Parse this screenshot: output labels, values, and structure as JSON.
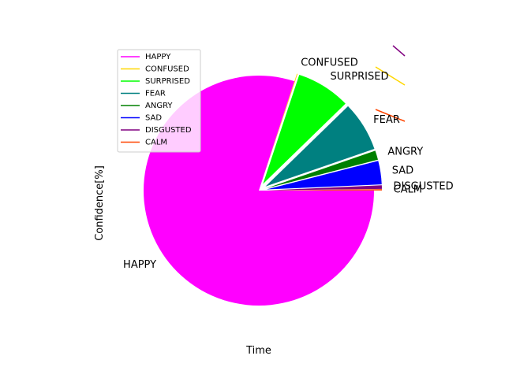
{
  "chart_data": {
    "type": "pie",
    "xlabel": "Time",
    "ylabel": "Confidence[%]",
    "slices": [
      {
        "label": "HAPPY",
        "value": 80.0,
        "color": "#ff00ff"
      },
      {
        "label": "CONFUSED",
        "value": 0.1,
        "color": "#ffd700"
      },
      {
        "label": "SURPRISED",
        "value": 7.6,
        "color": "#00ff00"
      },
      {
        "label": "FEAR",
        "value": 7.0,
        "color": "#008080"
      },
      {
        "label": "ANGRY",
        "value": 1.3,
        "color": "#008000"
      },
      {
        "label": "SAD",
        "value": 3.3,
        "color": "#0000ff"
      },
      {
        "label": "DISGUSTED",
        "value": 0.5,
        "color": "#800080"
      },
      {
        "label": "CALM",
        "value": 0.2,
        "color": "#ff4500"
      }
    ],
    "legend": {
      "placement": "upper-left",
      "entries": [
        "HAPPY",
        "CONFUSED",
        "SURPRISED",
        "FEAR",
        "ANGRY",
        "SAD",
        "DISGUSTED",
        "CALM"
      ]
    }
  }
}
